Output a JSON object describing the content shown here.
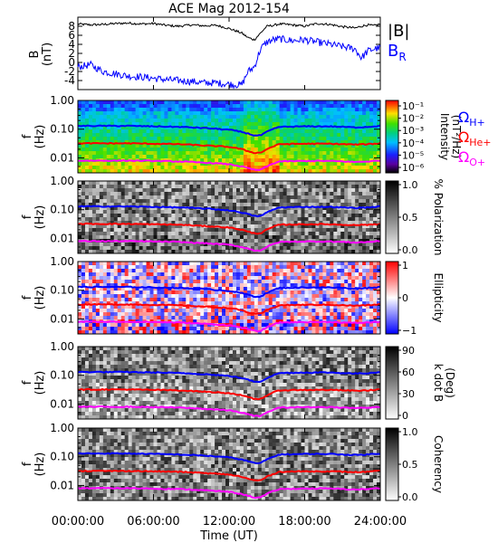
{
  "title": "ACE Mag 2012-154",
  "time_axis": {
    "label": "Time (UT)",
    "ticks": [
      "00:00:00",
      "06:00:00",
      "12:00:00",
      "18:00:00",
      "24:00:00"
    ],
    "range_hours": [
      0,
      24
    ]
  },
  "chart_data": [
    {
      "type": "line",
      "panel": "magnetic-field",
      "ylabel": "B",
      "yunit": "(nT)",
      "ylim": [
        -6,
        10
      ],
      "yticks": [
        -4,
        -2,
        0,
        2,
        4,
        6,
        8
      ],
      "x_hours": [
        0,
        1,
        2,
        3,
        4,
        5,
        6,
        7,
        8,
        9,
        10,
        11,
        12,
        13,
        13.5,
        14,
        14.5,
        15,
        15.5,
        16,
        17,
        18,
        19,
        20,
        21,
        22,
        22.5,
        23,
        23.5,
        24
      ],
      "series": [
        {
          "name": "|B|",
          "color": "#000000",
          "values": [
            8.5,
            8.3,
            8.4,
            8.6,
            8.7,
            8.5,
            8.6,
            8.2,
            8.0,
            8.3,
            8.1,
            8.2,
            7.5,
            6.5,
            5.5,
            5.0,
            6.5,
            8.0,
            8.2,
            8.5,
            8.3,
            8.0,
            8.6,
            8.4,
            7.9,
            7.6,
            8.0,
            8.3,
            8.1,
            8.5
          ]
        },
        {
          "name": "B_R",
          "color": "#0000ff",
          "values": [
            -1.0,
            -0.5,
            -2.0,
            -2.5,
            -3.0,
            -3.2,
            -3.5,
            -3.8,
            -4.0,
            -4.2,
            -4.5,
            -4.5,
            -4.8,
            -5.0,
            -2.0,
            -1.0,
            3.0,
            4.5,
            5.0,
            5.2,
            4.8,
            5.0,
            4.5,
            4.0,
            3.5,
            3.0,
            1.0,
            2.5,
            3.0,
            3.2
          ]
        }
      ]
    },
    {
      "type": "heatmap",
      "panel": "intensity",
      "ylabel": "f",
      "yunit": "(Hz)",
      "yscale": "log",
      "ylim": [
        0.003,
        1.0
      ],
      "yticks": [
        "1.00",
        "0.10",
        "0.01"
      ],
      "colorbar": {
        "label": "Intensity",
        "unit": "(nT²/Hz)",
        "scale": "log",
        "ticks": [
          "10⁻¹",
          "10⁻²",
          "10⁻³",
          "10⁻⁴",
          "10⁻⁵",
          "10⁻⁶"
        ]
      },
      "line_labels": [
        "Ω",
        "H+",
        "Ω",
        "He+",
        "Ω",
        "O+"
      ]
    },
    {
      "type": "heatmap",
      "panel": "polarization",
      "ylabel": "f",
      "yunit": "(Hz)",
      "yscale": "log",
      "ylim": [
        0.003,
        1.0
      ],
      "yticks": [
        "1.00",
        "0.10",
        "0.01"
      ],
      "colorbar": {
        "label": "% Polarization",
        "ticks": [
          "1.0",
          "0.5",
          "0.0"
        ]
      }
    },
    {
      "type": "heatmap",
      "panel": "ellipticity",
      "ylabel": "f",
      "yunit": "(Hz)",
      "yscale": "log",
      "ylim": [
        0.003,
        1.0
      ],
      "yticks": [
        "1.00",
        "0.10",
        "0.01"
      ],
      "colorbar": {
        "label": "Ellipticity",
        "ticks": [
          "1",
          "0",
          "−1"
        ]
      }
    },
    {
      "type": "heatmap",
      "panel": "kdotb",
      "ylabel": "f",
      "yunit": "(Hz)",
      "yscale": "log",
      "ylim": [
        0.003,
        1.0
      ],
      "yticks": [
        "1.00",
        "0.10",
        "0.01"
      ],
      "colorbar": {
        "label": "k dot B",
        "unit": "(Deg)",
        "ticks": [
          "90",
          "60",
          "30",
          "0"
        ]
      }
    },
    {
      "type": "heatmap",
      "panel": "coherency",
      "ylabel": "f",
      "yunit": "(Hz)",
      "yscale": "log",
      "ylim": [
        0.003,
        1.0
      ],
      "yticks": [
        "1.00",
        "0.10",
        "0.01"
      ],
      "colorbar": {
        "label": "Coherency",
        "ticks": [
          "1.0",
          "0.5",
          "0.0"
        ]
      }
    }
  ],
  "gyrofrequency_lines": {
    "x_hours": [
      0,
      2,
      4,
      6,
      8,
      10,
      12,
      13,
      13.5,
      14,
      14.5,
      15,
      15.5,
      16,
      18,
      20,
      22,
      23,
      24
    ],
    "series": [
      {
        "name": "H+",
        "color": "#0000ff",
        "values": [
          0.13,
          0.13,
          0.13,
          0.125,
          0.12,
          0.11,
          0.095,
          0.08,
          0.07,
          0.06,
          0.06,
          0.08,
          0.1,
          0.12,
          0.125,
          0.125,
          0.115,
          0.12,
          0.13
        ]
      },
      {
        "name": "He+",
        "color": "#ff0000",
        "values": [
          0.032,
          0.032,
          0.032,
          0.031,
          0.03,
          0.027,
          0.024,
          0.02,
          0.017,
          0.015,
          0.015,
          0.02,
          0.025,
          0.03,
          0.031,
          0.031,
          0.029,
          0.03,
          0.032
        ]
      },
      {
        "name": "O+",
        "color": "#ff00ff",
        "values": [
          0.008,
          0.008,
          0.008,
          0.0078,
          0.0075,
          0.0068,
          0.006,
          0.005,
          0.0044,
          0.0038,
          0.0038,
          0.005,
          0.0063,
          0.0075,
          0.0078,
          0.0078,
          0.0072,
          0.0075,
          0.008
        ]
      }
    ]
  },
  "legend": {
    "bmag": "|B|",
    "br": "B",
    "br_sub": "R"
  }
}
